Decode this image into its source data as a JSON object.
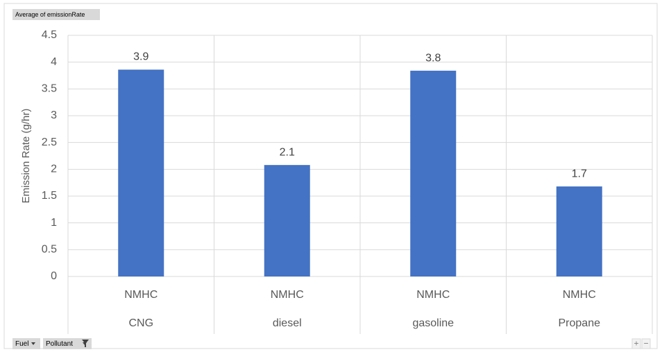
{
  "field_buttons": {
    "value_field": "Average of emissionRate",
    "axis_fields": [
      "Fuel",
      "Pollutant"
    ],
    "zoom": [
      "+",
      "−"
    ]
  },
  "chart_data": {
    "type": "bar",
    "y_label": "Emission Rate (g/hr)",
    "categories": [
      "CNG",
      "diesel",
      "gasoline",
      "Propane"
    ],
    "inner_categories": [
      "NMHC",
      "NMHC",
      "NMHC",
      "NMHC"
    ],
    "values": [
      3.86,
      2.08,
      3.84,
      1.68
    ],
    "value_labels": [
      "3.9",
      "2.1",
      "3.8",
      "1.7"
    ],
    "color": "#4472c4",
    "ylim": [
      0,
      4.5
    ],
    "yticks": [
      0,
      0.5,
      1,
      1.5,
      2,
      2.5,
      3,
      3.5,
      4,
      4.5
    ],
    "grid": true
  }
}
